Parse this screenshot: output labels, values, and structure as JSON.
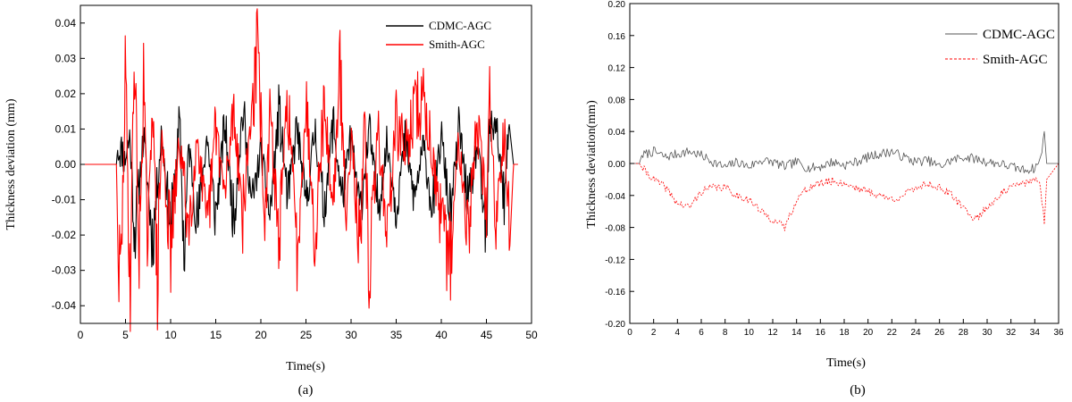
{
  "chart_data": [
    {
      "type": "line",
      "caption": "(a)",
      "xlabel": "Time(s)",
      "ylabel": "Thickness deviation (mm)",
      "xlim": [
        0,
        50
      ],
      "ylim": [
        -0.045,
        0.045
      ],
      "xticks": [
        "0",
        "5",
        "10",
        "15",
        "20",
        "25",
        "30",
        "35",
        "40",
        "45",
        "50"
      ],
      "yticks": [
        "-0.04",
        "-0.03",
        "-0.02",
        "-0.01",
        "0.00",
        "0.01",
        "0.02",
        "0.03",
        "0.04"
      ],
      "legend_position": "top-right",
      "grid": false,
      "series": [
        {
          "name": "CDMC-AGC",
          "color": "#000000",
          "style": "solid",
          "x": [
            0,
            4,
            4.1,
            4.7,
            4.8,
            5.5,
            6,
            7,
            8,
            9,
            10,
            11,
            11.5,
            12,
            13,
            14,
            15,
            16,
            17,
            18,
            19,
            20,
            21,
            22,
            23,
            24,
            25,
            26,
            27,
            28,
            29,
            30,
            31,
            32,
            33,
            34,
            35,
            36,
            37,
            38,
            39,
            40,
            41,
            42,
            43,
            44,
            45,
            45.3,
            46,
            47,
            47.5,
            48
          ],
          "y": [
            0,
            0,
            0.004,
            0.004,
            0,
            0.008,
            -0.02,
            0.008,
            -0.022,
            0.009,
            -0.018,
            0.012,
            -0.027,
            0.006,
            -0.017,
            0.008,
            -0.015,
            0.012,
            -0.016,
            0.016,
            -0.012,
            0.004,
            -0.015,
            0.015,
            -0.01,
            0.011,
            -0.012,
            0.01,
            -0.013,
            0.012,
            -0.01,
            0.008,
            -0.014,
            0.01,
            -0.012,
            0.006,
            -0.012,
            0.007,
            -0.01,
            0.005,
            -0.012,
            0.008,
            -0.015,
            0.011,
            -0.012,
            0.006,
            -0.023,
            0.008,
            0.014,
            -0.012,
            0.012,
            0
          ]
        },
        {
          "name": "Smith-AGC",
          "color": "#ff0000",
          "style": "solid",
          "x": [
            0,
            4,
            4.2,
            4.5,
            5,
            5.5,
            6,
            6.5,
            7,
            7.5,
            8,
            8.5,
            9,
            10,
            11,
            12,
            13,
            14,
            15,
            16,
            17,
            18,
            19,
            19.7,
            20.5,
            21,
            22,
            23,
            24,
            25,
            26,
            27,
            28,
            28.8,
            29.5,
            30,
            31,
            31.5,
            32,
            33,
            34,
            35,
            36,
            37,
            38,
            39,
            40,
            41,
            42,
            43,
            44,
            45,
            45.4,
            46,
            47,
            47.6,
            48,
            48.5
          ],
          "y": [
            0,
            0,
            -0.03,
            -0.032,
            0.027,
            -0.036,
            0.036,
            -0.03,
            0.025,
            -0.028,
            0.026,
            -0.035,
            0.008,
            -0.024,
            0.007,
            -0.018,
            0.009,
            -0.022,
            0.012,
            -0.01,
            0.017,
            -0.015,
            0.017,
            0.032,
            -0.02,
            0.015,
            -0.022,
            0.02,
            -0.025,
            0.018,
            -0.02,
            0.017,
            -0.012,
            0.026,
            -0.018,
            0.013,
            -0.028,
            0.012,
            -0.031,
            0.01,
            -0.02,
            0.012,
            0.004,
            0.015,
            0.018,
            0.004,
            -0.02,
            -0.026,
            0.008,
            -0.02,
            0.014,
            -0.015,
            0.024,
            -0.018,
            0.013,
            -0.023,
            0,
            0
          ]
        }
      ]
    },
    {
      "type": "line",
      "caption": "(b)",
      "xlabel": "Time(s)",
      "ylabel": "Thickness deviation(mm)",
      "xlim": [
        0,
        36
      ],
      "ylim": [
        -0.2,
        0.2
      ],
      "xticks": [
        "0",
        "2",
        "4",
        "6",
        "8",
        "10",
        "12",
        "14",
        "16",
        "18",
        "20",
        "22",
        "24",
        "26",
        "28",
        "30",
        "32",
        "34",
        "36"
      ],
      "yticks": [
        "0.20",
        "0.16",
        "0.12",
        "0.08",
        "0.04",
        "0.00",
        "-0.04",
        "-0.08",
        "-0.12",
        "-0.16",
        "-0.20"
      ],
      "legend_position": "top-right",
      "grid": false,
      "series": [
        {
          "name": "CDMC-AGC",
          "color": "#555555",
          "style": "solid",
          "x": [
            0,
            0.8,
            1,
            2,
            3,
            4,
            5,
            6,
            7,
            8,
            9,
            10,
            11,
            12,
            13,
            14,
            15,
            16,
            17,
            18,
            19,
            20,
            21,
            22,
            23,
            24,
            25,
            26,
            27,
            28,
            29,
            30,
            31,
            32,
            33,
            34,
            34.5,
            34.8,
            35,
            36
          ],
          "y": [
            0,
            0,
            0.01,
            0.015,
            0.008,
            0.012,
            0.015,
            0.01,
            0.002,
            -0.005,
            0.002,
            -0.004,
            0.004,
            0.002,
            -0.004,
            0.002,
            -0.006,
            -0.004,
            0.002,
            -0.002,
            0.002,
            0.008,
            0.012,
            0.015,
            0.008,
            0.002,
            0.004,
            -0.004,
            0.004,
            0.008,
            0.006,
            0.002,
            0,
            -0.004,
            -0.008,
            -0.006,
            0.006,
            0.04,
            0,
            0
          ]
        },
        {
          "name": "Smith-AGC",
          "color": "#ff0000",
          "style": "dashed",
          "x": [
            0,
            0.8,
            1,
            2,
            3,
            4,
            5,
            6,
            7,
            8,
            9,
            10,
            11,
            12,
            13,
            14,
            15,
            16,
            17,
            18,
            19,
            20,
            21,
            22,
            23,
            24,
            25,
            26,
            27,
            28,
            29,
            30,
            31,
            32,
            33,
            34,
            34.5,
            34.8,
            35,
            36
          ],
          "y": [
            0,
            0,
            -0.005,
            -0.02,
            -0.03,
            -0.05,
            -0.055,
            -0.035,
            -0.03,
            -0.03,
            -0.04,
            -0.045,
            -0.06,
            -0.07,
            -0.08,
            -0.045,
            -0.03,
            -0.025,
            -0.022,
            -0.025,
            -0.03,
            -0.035,
            -0.04,
            -0.045,
            -0.04,
            -0.03,
            -0.025,
            -0.03,
            -0.04,
            -0.055,
            -0.07,
            -0.055,
            -0.04,
            -0.03,
            -0.025,
            -0.02,
            -0.03,
            -0.075,
            -0.02,
            0
          ]
        }
      ]
    }
  ]
}
